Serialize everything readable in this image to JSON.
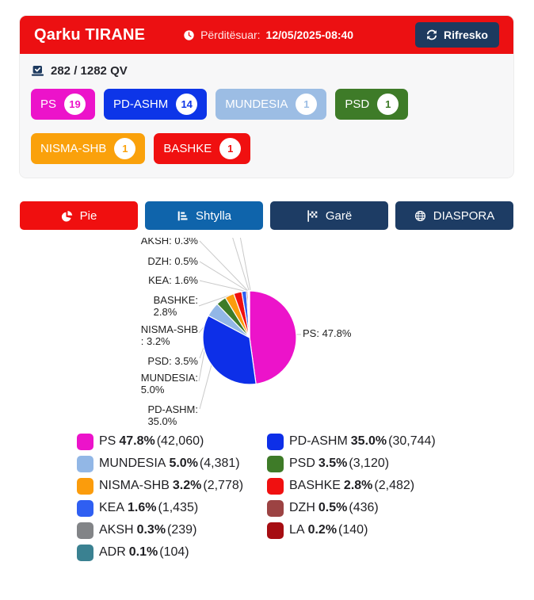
{
  "header": {
    "title": "Qarku TIRANE",
    "updated_label": "Përditësuar:",
    "updated_value": "12/05/2025-08:40",
    "refresh_label": "Rifresko",
    "bar_color": "#ec1012",
    "button_color": "#1d3a5f"
  },
  "counter": {
    "text": "282 / 1282 QV"
  },
  "badges": [
    {
      "id": "ps",
      "label": "PS",
      "count": "19",
      "color": "#ec13ca"
    },
    {
      "id": "pd-ashm",
      "label": "PD-ASHM",
      "count": "14",
      "color": "#0d35e8"
    },
    {
      "id": "mundesia",
      "label": "MUNDESIA",
      "count": "1",
      "color": "#9cbde4"
    },
    {
      "id": "psd",
      "label": "PSD",
      "count": "1",
      "color": "#3e7b28"
    },
    {
      "id": "nisma-shb",
      "label": "NISMA-SHB",
      "count": "1",
      "color": "#faa10b"
    },
    {
      "id": "bashke",
      "label": "BASHKE",
      "count": "1",
      "color": "#f01010"
    }
  ],
  "tabs": [
    {
      "id": "pie",
      "label": "Pie",
      "icon": "pie-chart-icon",
      "color": "#f00f0f"
    },
    {
      "id": "shtylla",
      "label": "Shtylla",
      "icon": "bar-chart-icon",
      "color": "#0f64ab"
    },
    {
      "id": "gare",
      "label": "Garë",
      "icon": "checkered-flag-icon",
      "color": "#1d3c64"
    },
    {
      "id": "diaspora",
      "label": "DIASPORA",
      "icon": "globe-icon",
      "color": "#1d3c64"
    }
  ],
  "chart_data": {
    "type": "pie",
    "title": "",
    "start_angle_deg": 0,
    "direction": "clockwise",
    "series": [
      {
        "name": "PS",
        "value": 47.8,
        "votes": "42,060",
        "color": "#ec13ca",
        "callout": "PS: 47.8%"
      },
      {
        "name": "PD-ASHM",
        "value": 35.0,
        "votes": "30,744",
        "color": "#0d2fe8",
        "callout": "PD-ASHM:\n35.0%"
      },
      {
        "name": "MUNDESIA",
        "value": 5.0,
        "votes": "4,381",
        "color": "#92b7e6",
        "callout": "MUNDESIA:\n5.0%"
      },
      {
        "name": "PSD",
        "value": 3.5,
        "votes": "3,120",
        "color": "#3e7b28",
        "callout": "PSD: 3.5%"
      },
      {
        "name": "NISMA-SHB",
        "value": 3.2,
        "votes": "2,778",
        "color": "#fb9c0c",
        "callout": "NISMA-SHB\n: 3.2%"
      },
      {
        "name": "BASHKE",
        "value": 2.8,
        "votes": "2,482",
        "color": "#f01010",
        "callout": "BASHKE:\n2.8%"
      },
      {
        "name": "KEA",
        "value": 1.6,
        "votes": "1,435",
        "color": "#2f5ff2",
        "callout": "KEA: 1.6%"
      },
      {
        "name": "DZH",
        "value": 0.5,
        "votes": "436",
        "color": "#9c4343",
        "callout": "DZH: 0.5%"
      },
      {
        "name": "AKSH",
        "value": 0.3,
        "votes": "239",
        "color": "#828487",
        "callout": "AKSH: 0.3%"
      },
      {
        "name": "LA",
        "value": 0.2,
        "votes": "140",
        "color": "#a60d12",
        "callout": null
      },
      {
        "name": "ADR",
        "value": 0.1,
        "votes": "104",
        "color": "#3a8191",
        "callout": null
      }
    ]
  },
  "legend": {
    "columns": [
      [
        {
          "id": "ps",
          "name": "PS",
          "pct": "47.8%",
          "votes": "42,060",
          "color": "#ec13ca"
        },
        {
          "id": "mundesia",
          "name": "MUNDESIA",
          "pct": "5.0%",
          "votes": "4,381",
          "color": "#92b7e6"
        },
        {
          "id": "nisma-shb",
          "name": "NISMA-SHB",
          "pct": "3.2%",
          "votes": "2,778",
          "color": "#fb9c0c"
        },
        {
          "id": "kea",
          "name": "KEA",
          "pct": "1.6%",
          "votes": "1,435",
          "color": "#2f5ff2"
        },
        {
          "id": "aksh",
          "name": "AKSH",
          "pct": "0.3%",
          "votes": "239",
          "color": "#828487"
        },
        {
          "id": "adr",
          "name": "ADR",
          "pct": "0.1%",
          "votes": "104",
          "color": "#3a8191"
        }
      ],
      [
        {
          "id": "pd-ashm",
          "name": "PD-ASHM",
          "pct": "35.0%",
          "votes": "30,744",
          "color": "#0d2fe8"
        },
        {
          "id": "psd",
          "name": "PSD",
          "pct": "3.5%",
          "votes": "3,120",
          "color": "#3e7b28"
        },
        {
          "id": "bashke",
          "name": "BASHKE",
          "pct": "2.8%",
          "votes": "2,482",
          "color": "#f01010"
        },
        {
          "id": "dzh",
          "name": "DZH",
          "pct": "0.5%",
          "votes": "436",
          "color": "#9c4343"
        },
        {
          "id": "la",
          "name": "LA",
          "pct": "0.2%",
          "votes": "140",
          "color": "#a60d12"
        }
      ]
    ]
  }
}
